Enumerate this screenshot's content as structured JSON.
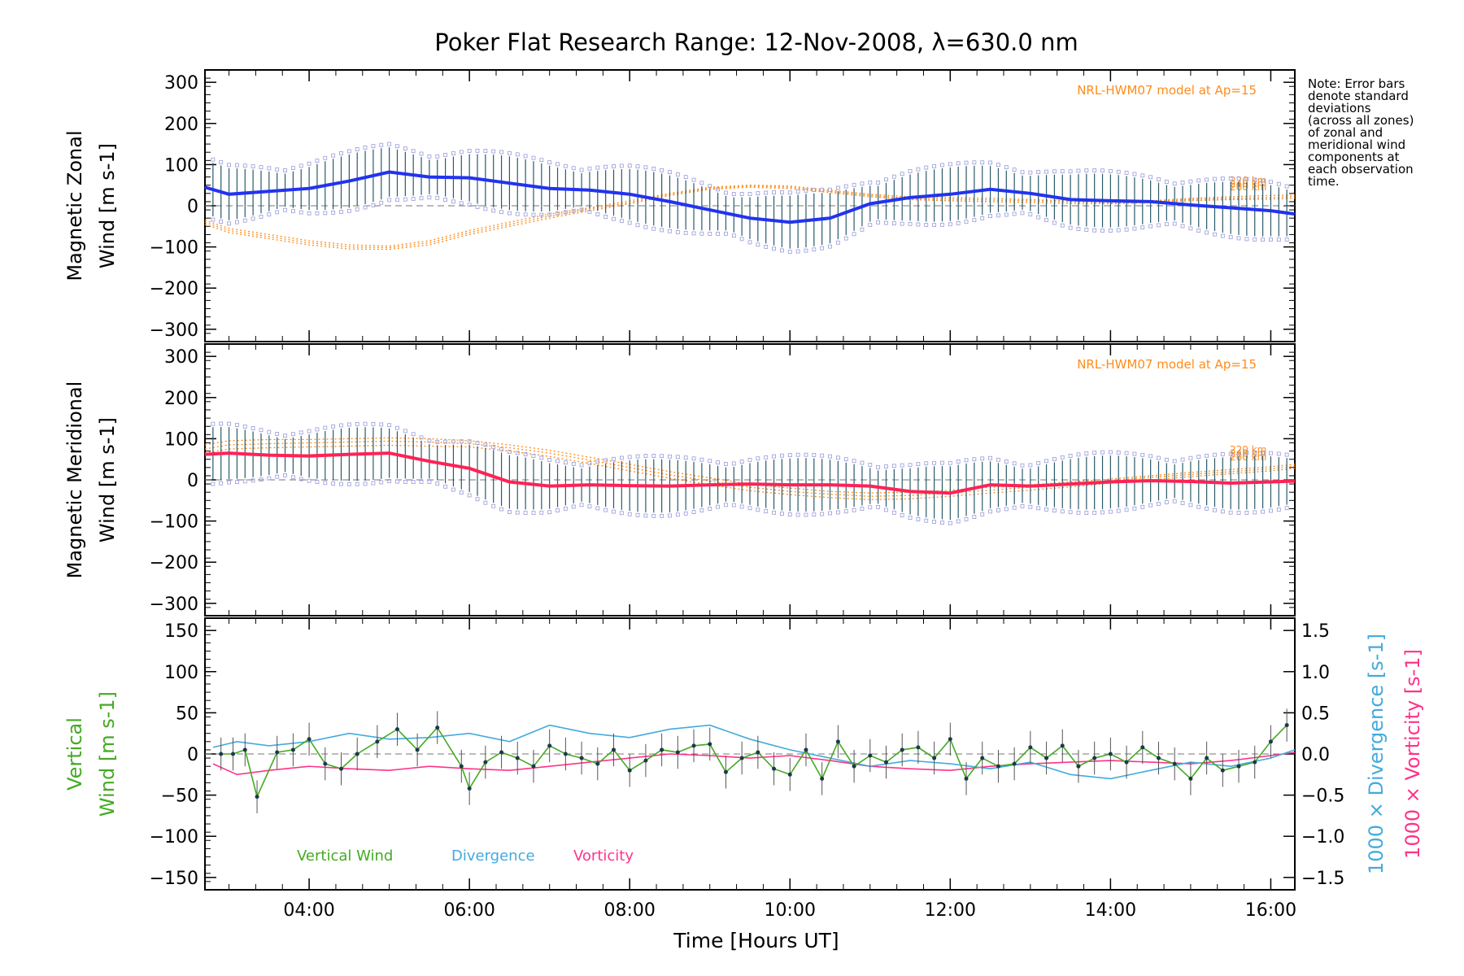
{
  "title": "Poker Flat Research Range: 12-Nov-2008, λ=630.0 nm",
  "note_lines": [
    "Note: Error bars",
    "denote standard",
    "deviations",
    "(across all zones)",
    "of zonal and",
    "meridional wind",
    "components at",
    "each observation",
    "time."
  ],
  "xaxis": {
    "label": "Time [Hours UT]",
    "range": [
      2.7,
      16.3
    ],
    "ticks": [
      4,
      6,
      8,
      10,
      12,
      14,
      16
    ],
    "tick_labels": [
      "04:00",
      "06:00",
      "08:00",
      "10:00",
      "12:00",
      "14:00",
      "16:00"
    ]
  },
  "colors": {
    "zonal": "#2233ee",
    "meridional": "#ff2255",
    "vertical": "#44aa22",
    "divergence": "#44aadd",
    "vorticity": "#ff3388",
    "model": "#ff8c1a",
    "errorbar": "#2a5a6a"
  },
  "legend": {
    "vertical": "Vertical Wind",
    "divergence": "Divergence",
    "vorticity": "Vorticity"
  },
  "chart_data": [
    {
      "type": "line",
      "panel": "zonal",
      "ylabel_line1": "Magnetic Zonal",
      "ylabel_line2": "Wind [m s-1]",
      "ylim": [
        -330,
        330
      ],
      "yticks": [
        -300,
        -200,
        -100,
        0,
        100,
        200,
        300
      ],
      "model_label": "NRL-HWM07 model at Ap=15",
      "model_altitudes": [
        "220 km",
        "240 km",
        "260 km"
      ],
      "x": [
        2.7,
        3.0,
        3.5,
        4.0,
        4.5,
        5.0,
        5.5,
        6.0,
        6.5,
        7.0,
        7.5,
        8.0,
        8.5,
        9.0,
        9.5,
        10.0,
        10.5,
        11.0,
        11.5,
        12.0,
        12.5,
        13.0,
        13.5,
        14.0,
        14.5,
        15.0,
        15.5,
        16.0,
        16.3
      ],
      "series": [
        {
          "values": [
            45,
            28,
            35,
            42,
            60,
            82,
            70,
            68,
            55,
            42,
            38,
            28,
            10,
            -10,
            -30,
            -40,
            -30,
            5,
            20,
            28,
            40,
            30,
            15,
            12,
            10,
            2,
            -5,
            -12,
            -20
          ]
        }
      ],
      "model": [
        {
          "values": [
            -35,
            -55,
            -70,
            -85,
            -95,
            -98,
            -85,
            -60,
            -40,
            -20,
            -5,
            12,
            30,
            45,
            50,
            48,
            38,
            28,
            22,
            20,
            18,
            15,
            12,
            10,
            12,
            18,
            22,
            25,
            26
          ]
        },
        {
          "values": [
            -40,
            -60,
            -75,
            -90,
            -100,
            -102,
            -90,
            -65,
            -45,
            -25,
            -8,
            8,
            28,
            42,
            48,
            45,
            35,
            25,
            18,
            16,
            14,
            12,
            10,
            8,
            10,
            15,
            18,
            20,
            22
          ]
        },
        {
          "values": [
            -45,
            -65,
            -80,
            -95,
            -105,
            -106,
            -95,
            -70,
            -50,
            -30,
            -12,
            5,
            25,
            40,
            45,
            42,
            32,
            22,
            15,
            12,
            10,
            8,
            6,
            5,
            8,
            12,
            15,
            16,
            18
          ]
        }
      ]
    },
    {
      "type": "line",
      "panel": "meridional",
      "ylabel_line1": "Magnetic Meridional",
      "ylabel_line2": "Wind [m s-1]",
      "ylim": [
        -330,
        330
      ],
      "yticks": [
        -300,
        -200,
        -100,
        0,
        100,
        200,
        300
      ],
      "model_label": "NRL-HWM07 model at Ap=15",
      "model_altitudes": [
        "220 km",
        "240 km",
        "260 km"
      ],
      "x": [
        2.7,
        3.0,
        3.5,
        4.0,
        4.5,
        5.0,
        5.5,
        6.0,
        6.5,
        7.0,
        7.5,
        8.0,
        8.5,
        9.0,
        9.5,
        10.0,
        10.5,
        11.0,
        11.5,
        12.0,
        12.5,
        13.0,
        13.5,
        14.0,
        14.5,
        15.0,
        15.5,
        16.0,
        16.3
      ],
      "series": [
        {
          "values": [
            62,
            65,
            60,
            58,
            62,
            65,
            45,
            28,
            -5,
            -15,
            -12,
            -14,
            -15,
            -12,
            -10,
            -12,
            -12,
            -15,
            -28,
            -32,
            -12,
            -15,
            -10,
            -5,
            -2,
            -4,
            -8,
            -5,
            -3
          ]
        }
      ],
      "model": [
        {
          "values": [
            85,
            95,
            98,
            98,
            100,
            102,
            100,
            95,
            85,
            72,
            55,
            38,
            20,
            5,
            -10,
            -20,
            -28,
            -32,
            -30,
            -25,
            -18,
            -12,
            -5,
            2,
            10,
            18,
            25,
            32,
            38
          ]
        },
        {
          "values": [
            75,
            85,
            88,
            90,
            92,
            94,
            92,
            88,
            78,
            65,
            48,
            30,
            12,
            -3,
            -18,
            -28,
            -35,
            -40,
            -38,
            -32,
            -25,
            -18,
            -10,
            -2,
            6,
            13,
            20,
            27,
            33
          ]
        },
        {
          "values": [
            65,
            75,
            78,
            80,
            82,
            84,
            82,
            80,
            70,
            57,
            40,
            22,
            4,
            -12,
            -26,
            -36,
            -43,
            -48,
            -46,
            -40,
            -32,
            -25,
            -17,
            -8,
            0,
            8,
            15,
            22,
            28
          ]
        }
      ]
    },
    {
      "type": "line",
      "panel": "vertical",
      "ylabel_line1": "Vertical",
      "ylabel_line2": "Wind [m s-1]",
      "y2label_divergence": "1000 × Divergence [s-1]",
      "y2label_vorticity": "1000 × Vorticity [s-1]",
      "ylim": [
        -165,
        165
      ],
      "yticks": [
        -150,
        -100,
        -50,
        0,
        50,
        100,
        150
      ],
      "y2lim": [
        -1.65,
        1.65
      ],
      "y2ticks": [
        -1.5,
        -1.0,
        -0.5,
        0.0,
        0.5,
        1.0,
        1.5
      ],
      "y2tick_labels": [
        "-1.5",
        "-1.0",
        "-0.5",
        "0.0",
        "0.5",
        "1.0",
        "1.5"
      ],
      "series": [
        {
          "name": "Vertical Wind",
          "x": [
            2.9,
            3.05,
            3.2,
            3.35,
            3.6,
            3.8,
            4.0,
            4.2,
            4.4,
            4.6,
            4.85,
            5.1,
            5.35,
            5.6,
            5.9,
            6.0,
            6.2,
            6.4,
            6.6,
            6.8,
            7.0,
            7.2,
            7.4,
            7.6,
            7.8,
            8.0,
            8.2,
            8.4,
            8.6,
            8.8,
            9.0,
            9.2,
            9.4,
            9.6,
            9.8,
            10.0,
            10.2,
            10.4,
            10.6,
            10.8,
            11.0,
            11.2,
            11.4,
            11.6,
            11.8,
            12.0,
            12.2,
            12.4,
            12.6,
            12.8,
            13.0,
            13.2,
            13.4,
            13.6,
            13.8,
            14.0,
            14.2,
            14.4,
            14.6,
            14.8,
            15.0,
            15.2,
            15.4,
            15.6,
            15.8,
            16.0,
            16.2
          ],
          "y": [
            0,
            0,
            5,
            -52,
            2,
            5,
            18,
            -12,
            -18,
            0,
            15,
            30,
            5,
            32,
            -15,
            -42,
            -10,
            2,
            -5,
            -15,
            10,
            0,
            -5,
            -12,
            5,
            -20,
            -8,
            5,
            2,
            10,
            12,
            -22,
            -5,
            2,
            -18,
            -25,
            5,
            -30,
            15,
            -15,
            -2,
            -10,
            5,
            8,
            -5,
            18,
            -30,
            -5,
            -15,
            -12,
            8,
            -5,
            10,
            -15,
            -5,
            0,
            -10,
            8,
            -5,
            -12,
            -30,
            -5,
            -20,
            -15,
            -10,
            15,
            35
          ]
        },
        {
          "name": "Divergence",
          "x": [
            2.8,
            3.1,
            3.5,
            4.0,
            4.5,
            5.0,
            5.5,
            6.0,
            6.5,
            7.0,
            7.5,
            8.0,
            8.5,
            9.0,
            9.5,
            10.0,
            10.5,
            11.0,
            11.5,
            12.0,
            12.5,
            13.0,
            13.5,
            14.0,
            14.5,
            15.0,
            15.5,
            16.0,
            16.3
          ],
          "y": [
            0.08,
            0.15,
            0.1,
            0.15,
            0.25,
            0.18,
            0.2,
            0.25,
            0.15,
            0.35,
            0.25,
            0.2,
            0.3,
            0.35,
            0.18,
            0.05,
            -0.05,
            -0.15,
            -0.08,
            -0.12,
            -0.18,
            -0.1,
            -0.25,
            -0.3,
            -0.2,
            -0.1,
            -0.15,
            -0.05,
            0.05
          ]
        },
        {
          "name": "Vorticity",
          "x": [
            2.8,
            3.1,
            3.5,
            4.0,
            4.5,
            5.0,
            5.5,
            6.0,
            6.5,
            7.0,
            7.5,
            8.0,
            8.5,
            9.0,
            9.5,
            10.0,
            10.5,
            11.0,
            11.5,
            12.0,
            12.5,
            13.0,
            13.5,
            14.0,
            14.5,
            15.0,
            15.5,
            16.0,
            16.3
          ],
          "y": [
            -0.12,
            -0.25,
            -0.2,
            -0.15,
            -0.18,
            -0.2,
            -0.15,
            -0.18,
            -0.2,
            -0.15,
            -0.1,
            -0.05,
            0.0,
            -0.02,
            -0.05,
            -0.02,
            -0.08,
            -0.15,
            -0.18,
            -0.2,
            -0.15,
            -0.12,
            -0.1,
            -0.08,
            -0.1,
            -0.12,
            -0.08,
            -0.02,
            0.02
          ]
        }
      ]
    }
  ]
}
